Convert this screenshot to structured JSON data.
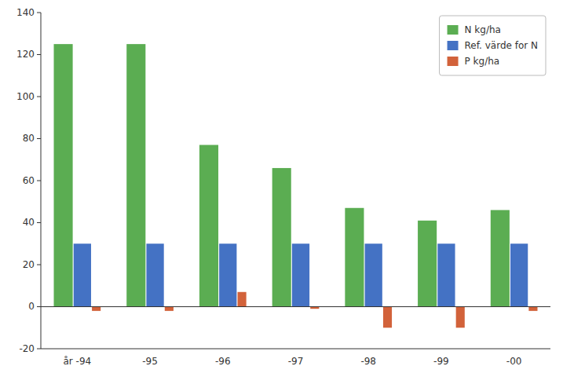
{
  "chart_data": {
    "type": "bar",
    "categories": [
      "år -94",
      "-95",
      "-96",
      "-97",
      "-98",
      "-99",
      "-00"
    ],
    "series": [
      {
        "name": "N kg/ha",
        "color": "#5BAD52",
        "values": [
          125,
          125,
          77,
          66,
          47,
          41,
          46
        ]
      },
      {
        "name": "Ref. värde for N",
        "color": "#4472C4",
        "values": [
          30,
          30,
          30,
          30,
          30,
          30,
          30
        ]
      },
      {
        "name": "P kg/ha",
        "color": "#D2623A",
        "values": [
          -2,
          -2,
          7,
          -1,
          -10,
          -10,
          -2
        ]
      }
    ],
    "ylim": [
      -20,
      140
    ],
    "yticks": [
      -20,
      0,
      20,
      40,
      60,
      80,
      100,
      120,
      140
    ],
    "grid": false,
    "legend": "upper right"
  }
}
